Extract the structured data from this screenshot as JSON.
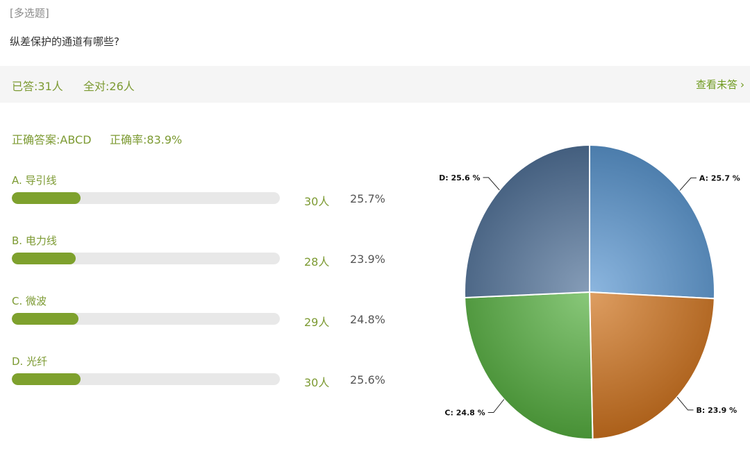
{
  "question": {
    "type_tag": "[多选题]",
    "title": "纵差保护的通道有哪些?"
  },
  "stats": {
    "answered": "已答:31人",
    "all_correct": "全对:26人",
    "view_unanswered": "查看未答"
  },
  "answer": {
    "correct": "正确答案:ABCD",
    "rate": "正确率:83.9%"
  },
  "options": [
    {
      "label": "A. 导引线",
      "count": "30人",
      "percent": "25.7%",
      "fill": 25.7
    },
    {
      "label": "B. 电力线",
      "count": "28人",
      "percent": "23.9%",
      "fill": 23.9
    },
    {
      "label": "C. 微波",
      "count": "29人",
      "percent": "24.8%",
      "fill": 24.8
    },
    {
      "label": "D. 光纤",
      "count": "30人",
      "percent": "25.6%",
      "fill": 25.6
    }
  ],
  "chart_data": {
    "type": "pie",
    "categories": [
      "A",
      "B",
      "C",
      "D"
    ],
    "values": [
      25.7,
      23.9,
      24.8,
      25.6
    ],
    "data_labels": [
      "A: 25.7 %",
      "B: 23.9 %",
      "C: 24.8 %",
      "D: 25.6 %"
    ],
    "colors": [
      "#5b97d1",
      "#d0741e",
      "#56b041",
      "#52739a"
    ],
    "title": "",
    "legend": "none"
  }
}
